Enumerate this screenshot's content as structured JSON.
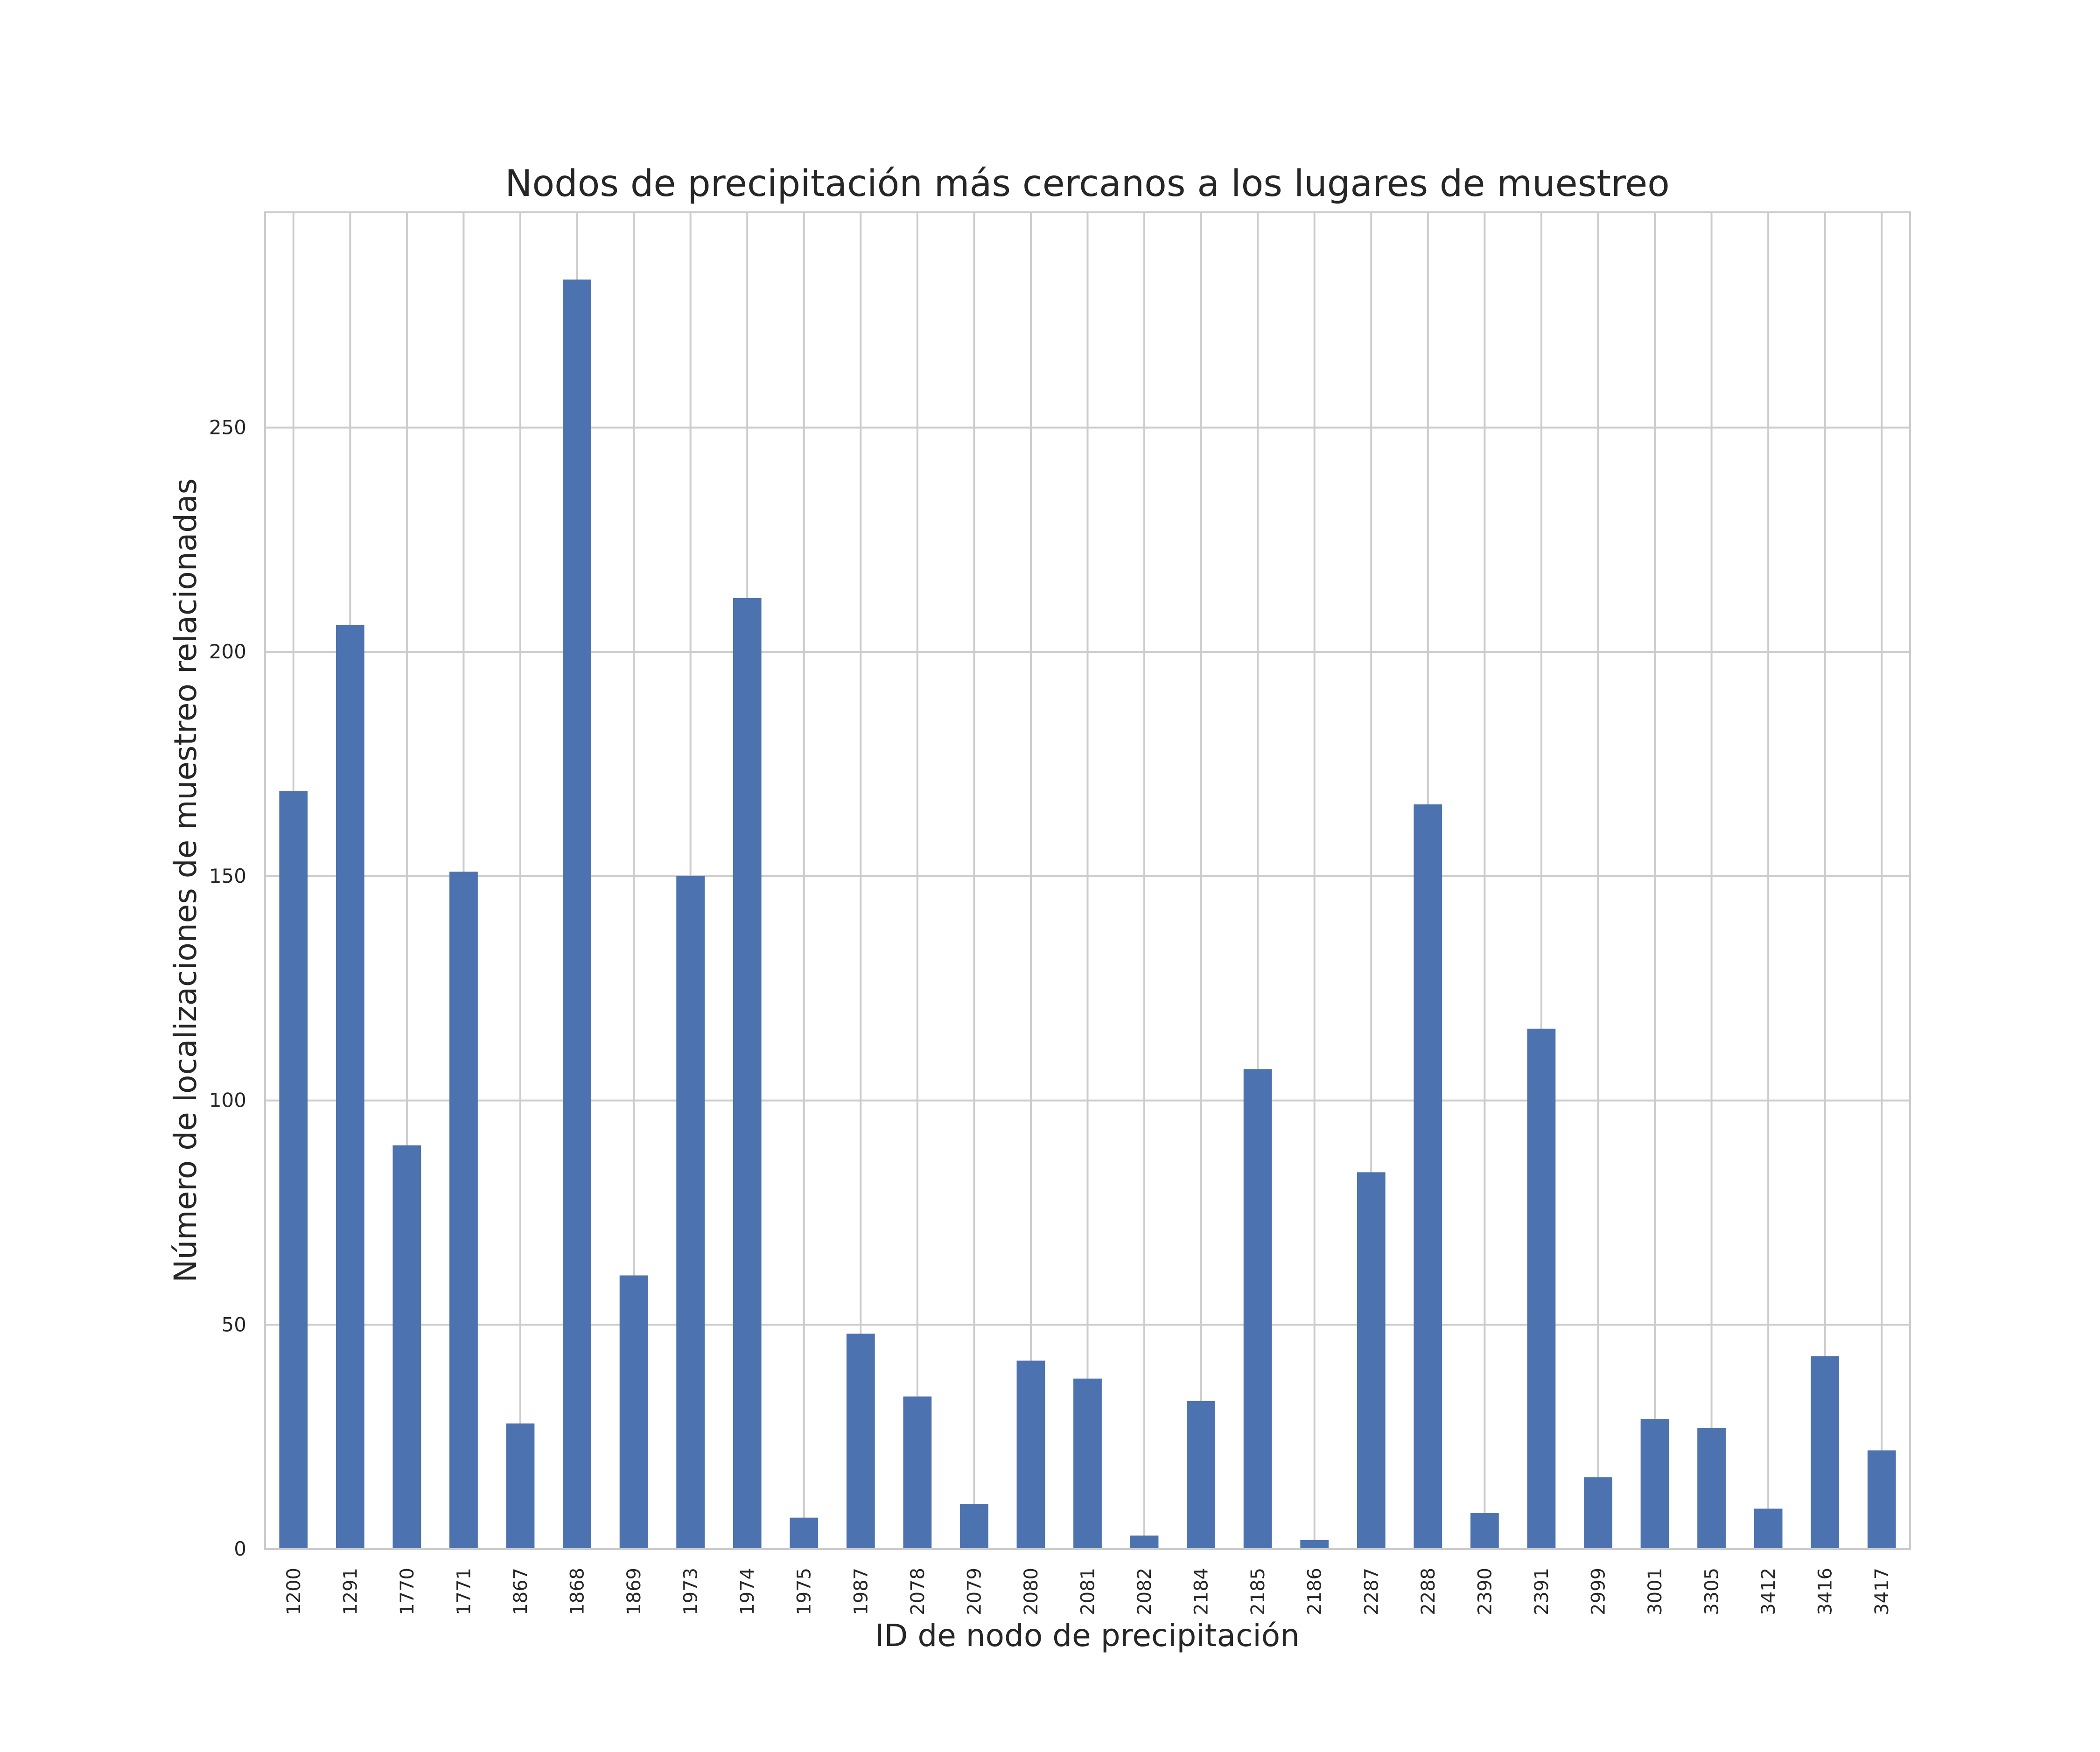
{
  "chart_data": {
    "type": "bar",
    "title": "Nodos de precipitación más cercanos a los lugares de muestreo",
    "xlabel": "ID de nodo de precipitación",
    "ylabel": "Número de localizaciones de muestreo relacionadas",
    "categories": [
      "1200",
      "1291",
      "1770",
      "1771",
      "1867",
      "1868",
      "1869",
      "1973",
      "1974",
      "1975",
      "1987",
      "2078",
      "2079",
      "2080",
      "2081",
      "2082",
      "2184",
      "2185",
      "2186",
      "2287",
      "2288",
      "2390",
      "2391",
      "2999",
      "3001",
      "3305",
      "3412",
      "3416",
      "3417"
    ],
    "values": [
      169,
      206,
      90,
      151,
      28,
      283,
      61,
      150,
      212,
      7,
      48,
      34,
      10,
      42,
      38,
      3,
      33,
      107,
      2,
      84,
      166,
      8,
      116,
      16,
      29,
      27,
      9,
      43,
      22
    ],
    "ylim": [
      0,
      298
    ],
    "yticks": [
      0,
      50,
      100,
      150,
      200,
      250
    ],
    "bar_color": "#4c72b0",
    "grid": true,
    "legend": "none"
  }
}
